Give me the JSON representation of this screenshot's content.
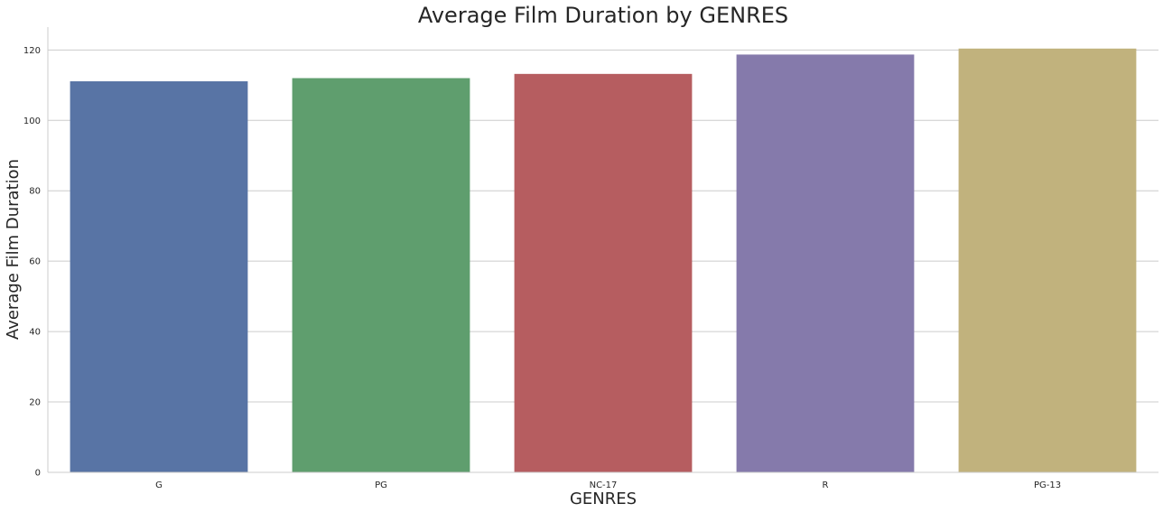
{
  "chart_data": {
    "type": "bar",
    "title": "Average Film Duration by GENRES",
    "xlabel": "GENRES",
    "ylabel": "Average Film Duration",
    "categories": [
      "G",
      "PG",
      "NC-17",
      "R",
      "PG-13"
    ],
    "values": [
      111.1,
      112.0,
      113.2,
      118.7,
      120.4
    ],
    "colors": [
      "#5874a5",
      "#5f9e6e",
      "#b65d60",
      "#857aab",
      "#c1b27d"
    ],
    "yticks": [
      "0",
      "20",
      "40",
      "60",
      "80",
      "100",
      "120"
    ],
    "ylim": [
      0,
      126.5
    ],
    "grid": true,
    "grid_axis": "y",
    "legend": "none"
  }
}
